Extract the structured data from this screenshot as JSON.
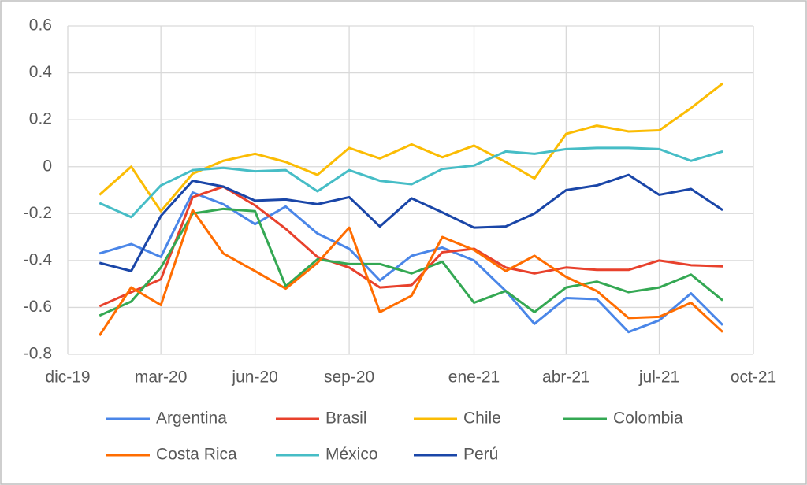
{
  "chart_data": {
    "type": "line",
    "x": [
      "2020-01",
      "2020-02",
      "2020-03",
      "2020-04",
      "2020-05",
      "2020-06",
      "2020-07",
      "2020-08",
      "2020-09",
      "2020-10",
      "2020-11",
      "2020-12",
      "2021-01",
      "2021-02",
      "2021-03",
      "2021-04",
      "2021-05",
      "2021-06",
      "2021-07",
      "2021-08",
      "2021-09"
    ],
    "xlim": [
      "2019-12",
      "2021-10"
    ],
    "xticks": [
      {
        "value": "2019-12",
        "label": "dic-19"
      },
      {
        "value": "2020-03",
        "label": "mar-20"
      },
      {
        "value": "2020-06",
        "label": "jun-20"
      },
      {
        "value": "2020-09",
        "label": "sep-20"
      },
      {
        "value": "2021-01",
        "label": "ene-21"
      },
      {
        "value": "2021-04",
        "label": "abr-21"
      },
      {
        "value": "2021-07",
        "label": "jul-21"
      },
      {
        "value": "2021-10",
        "label": "oct-21"
      }
    ],
    "ylim": [
      -0.8,
      0.6
    ],
    "yticks": [
      -0.8,
      -0.6,
      -0.4,
      -0.2,
      0,
      0.2,
      0.4,
      0.6
    ],
    "grid": true,
    "legend": "bottom",
    "series": [
      {
        "name": "Argentina",
        "color": "#4a86e8",
        "values": [
          -0.37,
          -0.33,
          -0.385,
          -0.11,
          -0.16,
          -0.245,
          -0.17,
          -0.285,
          -0.35,
          -0.485,
          -0.38,
          -0.345,
          -0.4,
          -0.53,
          -0.67,
          -0.56,
          -0.565,
          -0.705,
          -0.655,
          -0.54,
          -0.675
        ]
      },
      {
        "name": "Brasil",
        "color": "#e8412c",
        "values": [
          -0.595,
          -0.535,
          -0.48,
          -0.13,
          -0.085,
          -0.165,
          -0.265,
          -0.385,
          -0.43,
          -0.515,
          -0.505,
          -0.365,
          -0.35,
          -0.43,
          -0.455,
          -0.43,
          -0.44,
          -0.44,
          -0.4,
          -0.42,
          -0.425
        ]
      },
      {
        "name": "Chile",
        "color": "#fbbc04",
        "values": [
          -0.12,
          0.0,
          -0.19,
          -0.03,
          0.025,
          0.055,
          0.02,
          -0.035,
          0.08,
          0.035,
          0.095,
          0.04,
          0.09,
          0.02,
          -0.05,
          0.14,
          0.175,
          0.15,
          0.155,
          0.25,
          0.355
        ]
      },
      {
        "name": "Colombia",
        "color": "#34a853",
        "values": [
          -0.635,
          -0.575,
          -0.43,
          -0.2,
          -0.18,
          -0.19,
          -0.51,
          -0.395,
          -0.415,
          -0.415,
          -0.455,
          -0.405,
          -0.58,
          -0.53,
          -0.62,
          -0.515,
          -0.49,
          -0.535,
          -0.515,
          -0.46,
          -0.57
        ]
      },
      {
        "name": "Costa Rica",
        "color": "#ff6d01",
        "values": [
          -0.72,
          -0.515,
          -0.59,
          -0.185,
          -0.37,
          -0.445,
          -0.52,
          -0.41,
          -0.26,
          -0.62,
          -0.55,
          -0.3,
          -0.355,
          -0.445,
          -0.38,
          -0.47,
          -0.53,
          -0.645,
          -0.64,
          -0.58,
          -0.705
        ]
      },
      {
        "name": "México",
        "color": "#46bdc6",
        "values": [
          -0.155,
          -0.215,
          -0.08,
          -0.015,
          -0.005,
          -0.02,
          -0.015,
          -0.105,
          -0.015,
          -0.06,
          -0.075,
          -0.01,
          0.005,
          0.065,
          0.055,
          0.075,
          0.08,
          0.08,
          0.075,
          0.025,
          0.065
        ]
      },
      {
        "name": "Perú",
        "color": "#1a46a8",
        "values": [
          -0.41,
          -0.445,
          -0.21,
          -0.06,
          -0.085,
          -0.145,
          -0.14,
          -0.16,
          -0.13,
          -0.255,
          -0.135,
          -0.195,
          -0.26,
          -0.255,
          -0.2,
          -0.1,
          -0.08,
          -0.035,
          -0.12,
          -0.095,
          -0.185
        ]
      }
    ]
  }
}
